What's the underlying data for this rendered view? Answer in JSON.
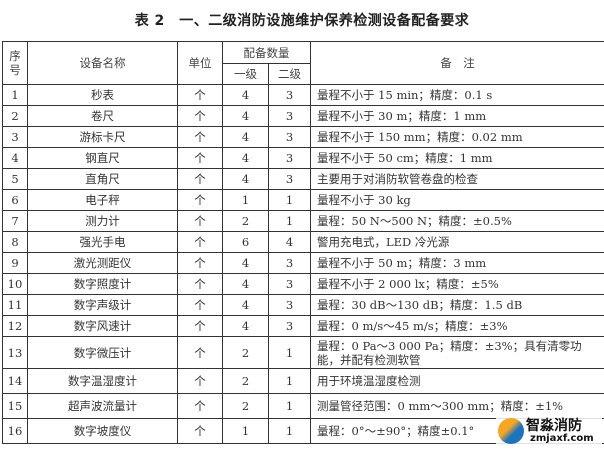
{
  "title": "表 2　一、二级消防设施维护保养检测设备配备要求",
  "headers": {
    "index": "序号",
    "name": "设备名称",
    "unit": "单位",
    "quantity": "配备数量",
    "level1": "一级",
    "level2": "二级",
    "note": "备　注"
  },
  "rows": [
    {
      "no": "1",
      "name": "秒表",
      "unit": "个",
      "l1": "4",
      "l2": "3",
      "note": "量程不小于 15 min；精度：0.1 s"
    },
    {
      "no": "2",
      "name": "卷尺",
      "unit": "个",
      "l1": "4",
      "l2": "3",
      "note": "量程不小于 30 m；精度：1 mm"
    },
    {
      "no": "3",
      "name": "游标卡尺",
      "unit": "个",
      "l1": "4",
      "l2": "3",
      "note": "量程不小于 150 mm；精度：0.02 mm"
    },
    {
      "no": "4",
      "name": "钢直尺",
      "unit": "个",
      "l1": "4",
      "l2": "3",
      "note": "量程不小于 50 cm；精度：1 mm"
    },
    {
      "no": "5",
      "name": "直角尺",
      "unit": "个",
      "l1": "4",
      "l2": "3",
      "note": "主要用于对消防软管卷盘的检查"
    },
    {
      "no": "6",
      "name": "电子秤",
      "unit": "个",
      "l1": "1",
      "l2": "1",
      "note": "量程不小于 30 kg"
    },
    {
      "no": "7",
      "name": "测力计",
      "unit": "个",
      "l1": "2",
      "l2": "1",
      "note": "量程：50 N～500 N；精度：±0.5%"
    },
    {
      "no": "8",
      "name": "强光手电",
      "unit": "个",
      "l1": "6",
      "l2": "4",
      "note": "警用充电式，LED 冷光源"
    },
    {
      "no": "9",
      "name": "激光测距仪",
      "unit": "个",
      "l1": "4",
      "l2": "3",
      "note": "量程不小于 50 m；精度：3 mm"
    },
    {
      "no": "10",
      "name": "数字照度计",
      "unit": "个",
      "l1": "4",
      "l2": "3",
      "note": "量程不小于 2 000 lx；精度：±5%"
    },
    {
      "no": "11",
      "name": "数字声级计",
      "unit": "个",
      "l1": "4",
      "l2": "3",
      "note": "量程：30 dB～130 dB；精度：1.5 dB"
    },
    {
      "no": "12",
      "name": "数字风速计",
      "unit": "个",
      "l1": "4",
      "l2": "3",
      "note": "量程：0 m/s～45 m/s；精度：±3%"
    },
    {
      "no": "13",
      "name": "数字微压计",
      "unit": "个",
      "l1": "2",
      "l2": "1",
      "note": "量程：0 Pa～3 000 Pa；精度：±3%；具有清零功能，并配有检测软管"
    },
    {
      "no": "14",
      "name": "数字温湿度计",
      "unit": "个",
      "l1": "2",
      "l2": "1",
      "note": "用于环境温湿度检测"
    },
    {
      "no": "15",
      "name": "超声波流量计",
      "unit": "个",
      "l1": "2",
      "l2": "1",
      "note": "测量管径范围：0 mm～300 mm；精度：±1%"
    },
    {
      "no": "16",
      "name": "数字坡度仪",
      "unit": "个",
      "l1": "1",
      "l2": "1",
      "note": "量程：0°～±90°；精度±0.1°"
    }
  ],
  "watermark": {
    "name": "智淼消防",
    "site": "zmjaxf.com"
  }
}
